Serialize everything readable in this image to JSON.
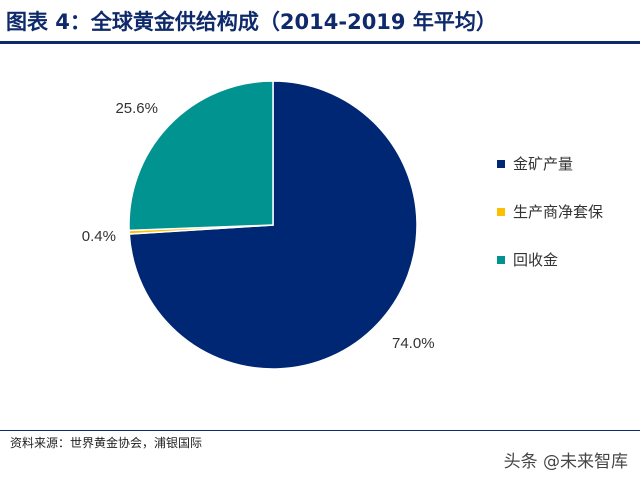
{
  "header": {
    "title": "图表 4：全球黄金供给构成（2014-2019 年平均）"
  },
  "colors": {
    "title": "#0f2a6b",
    "slices": [
      "#002774",
      "#fdbf00",
      "#00938f"
    ]
  },
  "chart_data": {
    "type": "pie",
    "title": "",
    "categories": [
      "金矿产量",
      "生产商净套保",
      "回收金"
    ],
    "values": [
      74.0,
      0.4,
      25.6
    ],
    "labels": [
      "74.0%",
      "0.4%",
      "25.6%"
    ],
    "start_angle": "12 o'clock",
    "direction": "clockwise",
    "legend_position": "right"
  },
  "footer": {
    "source": "资料来源：世界黄金协会，浦银国际",
    "watermark": "头条 @未来智库"
  }
}
